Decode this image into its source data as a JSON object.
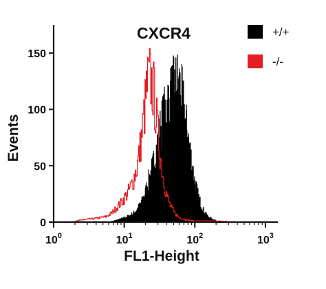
{
  "chart_data": {
    "type": "histogram",
    "title": "CXCR4",
    "xlabel": "FL1-Height",
    "ylabel": "Events",
    "x_scale": "log",
    "xlim": [
      1,
      1500
    ],
    "ylim": [
      0,
      175
    ],
    "x_ticks": [
      {
        "value": 1,
        "base": "10",
        "exp": "0"
      },
      {
        "value": 10,
        "base": "10",
        "exp": "1"
      },
      {
        "value": 100,
        "base": "10",
        "exp": "2"
      },
      {
        "value": 1000,
        "base": "10",
        "exp": "3"
      }
    ],
    "y_ticks": [
      0,
      50,
      100,
      150
    ],
    "legend_position": "top-right",
    "series": [
      {
        "name": "+/+",
        "color": "#000000",
        "style": "filled",
        "points": [
          [
            6,
            0
          ],
          [
            8,
            2
          ],
          [
            10,
            4
          ],
          [
            12,
            6
          ],
          [
            14,
            9
          ],
          [
            16,
            14
          ],
          [
            18,
            20
          ],
          [
            20,
            28
          ],
          [
            22,
            38
          ],
          [
            25,
            50
          ],
          [
            28,
            65
          ],
          [
            31,
            80
          ],
          [
            34,
            92
          ],
          [
            37,
            100
          ],
          [
            40,
            108
          ],
          [
            44,
            115
          ],
          [
            48,
            120
          ],
          [
            52,
            124
          ],
          [
            56,
            128
          ],
          [
            60,
            125
          ],
          [
            64,
            118
          ],
          [
            68,
            108
          ],
          [
            72,
            96
          ],
          [
            78,
            82
          ],
          [
            85,
            66
          ],
          [
            92,
            50
          ],
          [
            100,
            36
          ],
          [
            110,
            25
          ],
          [
            125,
            14
          ],
          [
            140,
            8
          ],
          [
            160,
            4
          ],
          [
            190,
            2
          ],
          [
            220,
            0
          ]
        ]
      },
      {
        "name": "-/-",
        "color": "#e31e24",
        "style": "outline",
        "points": [
          [
            1.8,
            0
          ],
          [
            2.5,
            2
          ],
          [
            3.5,
            3
          ],
          [
            4.5,
            4
          ],
          [
            5.5,
            5
          ],
          [
            6.5,
            8
          ],
          [
            7.5,
            12
          ],
          [
            9,
            18
          ],
          [
            11,
            26
          ],
          [
            13,
            36
          ],
          [
            15,
            50
          ],
          [
            16.5,
            66
          ],
          [
            18,
            85
          ],
          [
            19.5,
            105
          ],
          [
            21,
            125
          ],
          [
            22.5,
            132
          ],
          [
            24,
            128
          ],
          [
            26,
            118
          ],
          [
            28,
            100
          ],
          [
            30,
            78
          ],
          [
            33,
            56
          ],
          [
            36,
            38
          ],
          [
            40,
            24
          ],
          [
            45,
            14
          ],
          [
            52,
            8
          ],
          [
            60,
            4
          ],
          [
            75,
            2
          ],
          [
            100,
            1
          ],
          [
            200,
            1
          ],
          [
            420,
            0
          ]
        ]
      }
    ]
  }
}
